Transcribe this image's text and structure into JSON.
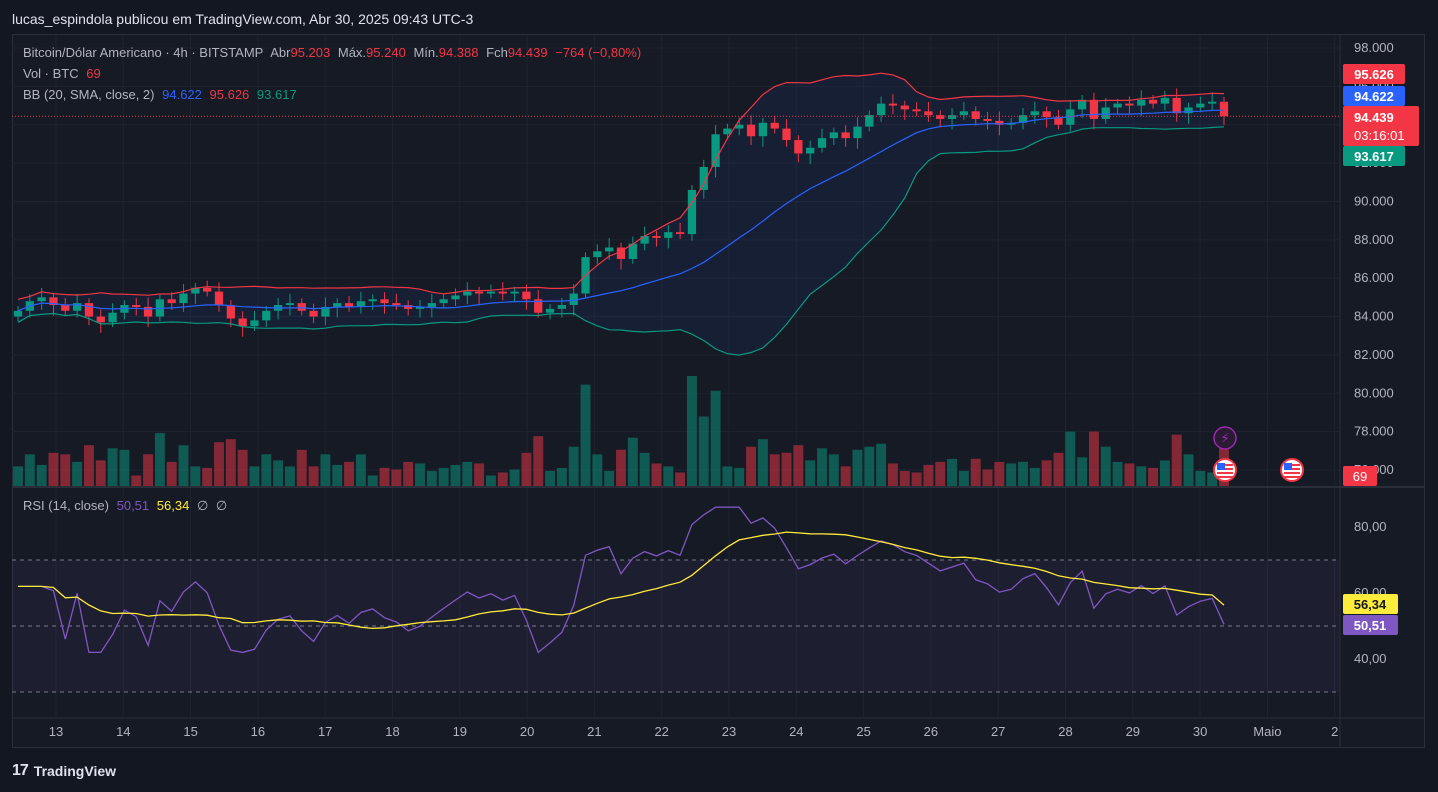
{
  "header": {
    "publisher": "lucas_espindola publicou em TradingView.com, Abr 30, 2025 09:43 UTC-3"
  },
  "legend": {
    "symbol": "Bitcoin/Dólar Americano · 4h · BITSTAMP",
    "open_label": "Abr",
    "open": "95.203",
    "high_label": "Máx.",
    "high": "95.240",
    "low_label": "Mín.",
    "low": "94.388",
    "close_label": "Fch",
    "close": "94.439",
    "change": "−764 (−0,80%)",
    "vol_label": "Vol · BTC",
    "vol_value": "69",
    "bb_label": "BB (20, SMA, close, 2)",
    "bb_basis": "94.622",
    "bb_upper": "95.626",
    "bb_lower": "93.617",
    "rsi_label": "RSI (14, close)",
    "rsi_value": "50,51",
    "rsi_ma": "56,34",
    "rsi_extra1": "∅",
    "rsi_extra2": "∅"
  },
  "price_badges": {
    "upper": "95.626",
    "basis": "94.622",
    "last": "94.439",
    "countdown": "03:16:01",
    "lower": "93.617",
    "volume": "69",
    "rsi_ma": "56,34",
    "rsi": "50,51"
  },
  "colors": {
    "up": "#089981",
    "down": "#f23645",
    "bb_basis": "#2962ff",
    "bb_upper": "#f23645",
    "bb_lower": "#089981",
    "rsi": "#7e57c2",
    "rsi_ma": "#ffeb3b"
  },
  "footer": {
    "brand": "TradingView"
  },
  "events": [
    {
      "icon": "lightning-icon",
      "color": "#9c27b0"
    },
    {
      "icon": "us-flag-icon"
    },
    {
      "icon": "us-flag-icon"
    }
  ],
  "chart_data": [
    {
      "type": "candlestick",
      "title": "Bitcoin/Dólar Americano · 4h · BITSTAMP",
      "x_ticks": [
        "13",
        "14",
        "15",
        "16",
        "17",
        "18",
        "19",
        "20",
        "21",
        "22",
        "23",
        "24",
        "25",
        "26",
        "27",
        "28",
        "29",
        "30",
        "Maio",
        "2"
      ],
      "y_ticks": [
        "98.000",
        "96.000",
        "94.000",
        "92.000",
        "90.000",
        "88.000",
        "86.000",
        "84.000",
        "82.000",
        "80.000",
        "78.000",
        "76.000"
      ],
      "ylim": [
        75000,
        98500
      ],
      "closes": [
        84300,
        84800,
        85000,
        84600,
        84300,
        84700,
        84000,
        83700,
        84200,
        84600,
        84500,
        84000,
        84900,
        84700,
        85200,
        85500,
        85300,
        84600,
        83900,
        83500,
        83800,
        84300,
        84600,
        84700,
        84300,
        84000,
        84500,
        84700,
        84500,
        84800,
        84900,
        84700,
        84600,
        84400,
        84500,
        84700,
        84900,
        85100,
        85300,
        85200,
        85300,
        85200,
        85300,
        84900,
        84200,
        84400,
        84600,
        85200,
        87100,
        87400,
        87600,
        87000,
        87800,
        88200,
        88100,
        88400,
        88300,
        90600,
        91800,
        93500,
        93800,
        94000,
        93400,
        94100,
        93800,
        93200,
        92500,
        92800,
        93300,
        93600,
        93300,
        93900,
        94500,
        95100,
        95000,
        94800,
        94700,
        94500,
        94300,
        94500,
        94700,
        94300,
        94200,
        94000,
        94100,
        94500,
        94700,
        94400,
        94000,
        94800,
        95300,
        94300,
        94900,
        95100,
        95000,
        95300,
        95100,
        95400,
        94600,
        94900,
        95100,
        95200,
        94440
      ],
      "bb_upper": {
        "values_start": 86000,
        "note": "upper band line"
      },
      "bb_basis_last": 94622,
      "bb_upper_last": 95626,
      "bb_lower_last": 93617,
      "last_price": 94439
    },
    {
      "type": "bar",
      "title": "Vol · BTC",
      "last_value": 69
    },
    {
      "type": "line",
      "title": "RSI (14, close)",
      "y_ticks": [
        "80,00",
        "60,00",
        "40,00"
      ],
      "ylim": [
        20,
        90
      ],
      "rsi_last": 50.51,
      "rsi_ma_last": 56.34
    }
  ]
}
